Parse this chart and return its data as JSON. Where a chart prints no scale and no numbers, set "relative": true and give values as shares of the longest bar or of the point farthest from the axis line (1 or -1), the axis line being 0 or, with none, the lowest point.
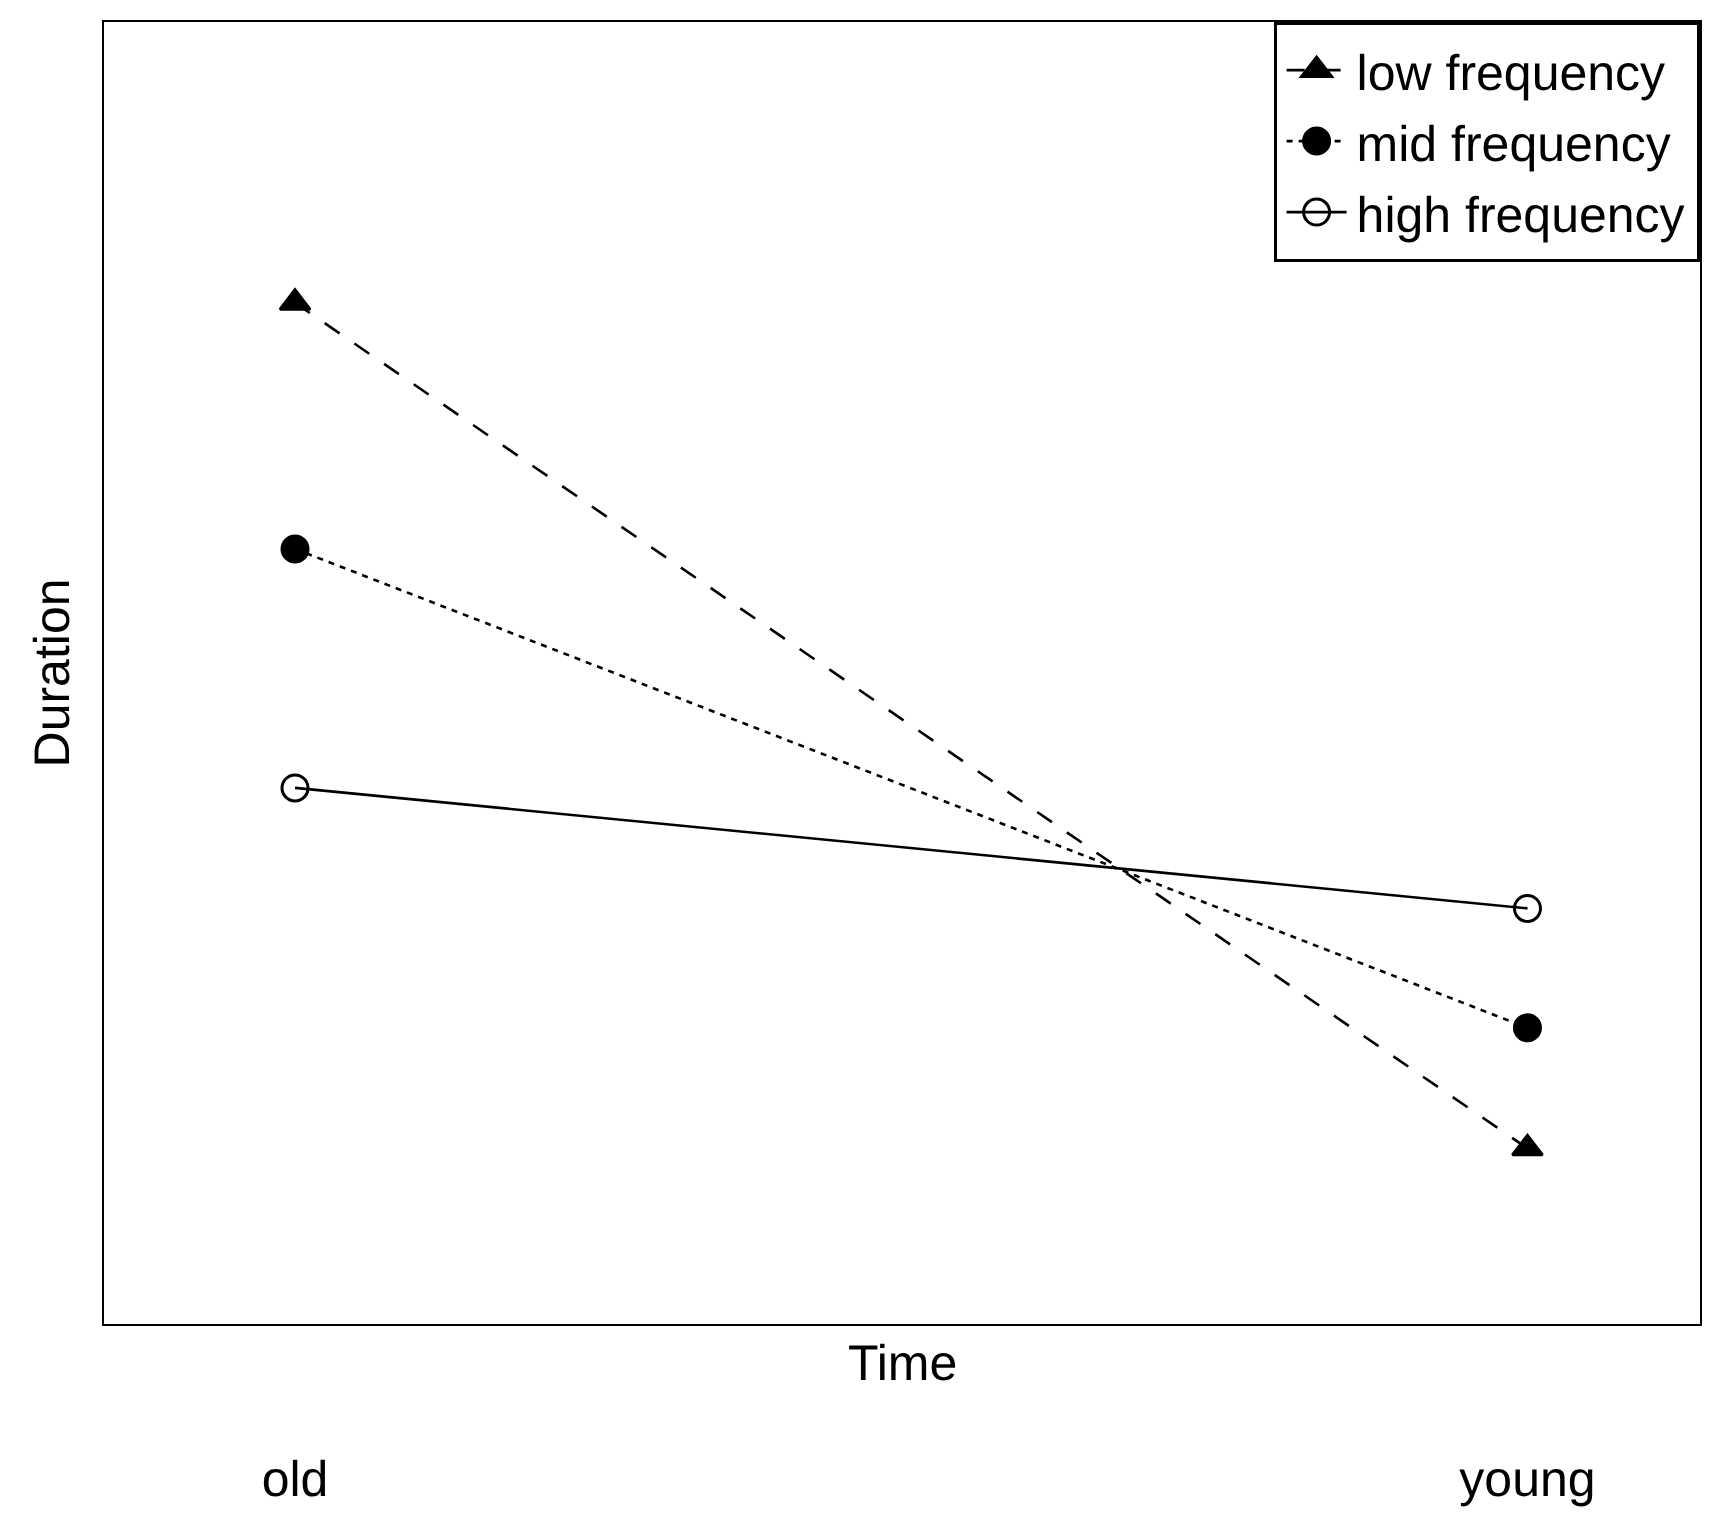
{
  "chart_data": {
    "type": "line",
    "relative": true,
    "xlabel": "Time",
    "ylabel": "Duration",
    "categories": [
      "old",
      "young"
    ],
    "series": [
      {
        "name": "low frequency",
        "color": "#000000",
        "values": [
          1,
          0.172
        ],
        "marker": "triangle",
        "line_style": "dashed"
      },
      {
        "name": "mid frequency",
        "color": "#000000",
        "values": [
          0.759,
          0.29
        ],
        "marker": "circle",
        "line_style": "dotted"
      },
      {
        "name": "high frequency",
        "color": "#000000",
        "values": [
          0.525,
          0.407
        ],
        "marker": "circle-open",
        "line_style": "solid"
      }
    ],
    "legend": "top right"
  }
}
